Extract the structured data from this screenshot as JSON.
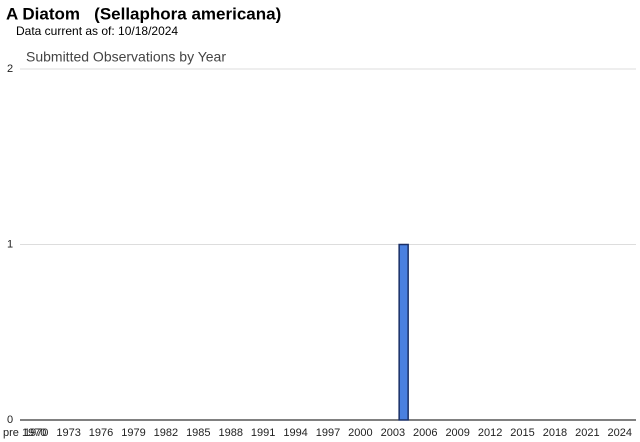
{
  "chart_data": {
    "type": "bar",
    "title": "A Diatom   (Sellaphora americana)",
    "subtitle": "Data current as of: 10/18/2024",
    "chart_title": "Submitted Observations by Year",
    "categories": [
      "pre 1970",
      "1970",
      null,
      null,
      "1973",
      null,
      null,
      "1976",
      null,
      null,
      "1979",
      null,
      null,
      "1982",
      null,
      null,
      "1985",
      null,
      null,
      "1988",
      null,
      null,
      "1991",
      null,
      null,
      "1994",
      null,
      null,
      "1997",
      null,
      null,
      "2000",
      null,
      null,
      "2003",
      null,
      null,
      "2006",
      null,
      null,
      "2009",
      null,
      null,
      "2012",
      null,
      null,
      "2015",
      null,
      null,
      "2018",
      null,
      null,
      "2021",
      null,
      null,
      "2024",
      null
    ],
    "values": [
      0,
      0,
      0,
      0,
      0,
      0,
      0,
      0,
      0,
      0,
      0,
      0,
      0,
      0,
      0,
      0,
      0,
      0,
      0,
      0,
      0,
      0,
      0,
      0,
      0,
      0,
      0,
      0,
      0,
      0,
      0,
      0,
      0,
      0,
      0,
      1,
      0,
      0,
      0,
      0,
      0,
      0,
      0,
      0,
      0,
      0,
      0,
      0,
      0,
      0,
      0,
      0,
      0,
      0,
      0,
      0,
      0
    ],
    "color": "#4a80e0",
    "ylim": [
      0,
      2
    ],
    "yticks": [
      0,
      1,
      2
    ],
    "grid": true
  }
}
